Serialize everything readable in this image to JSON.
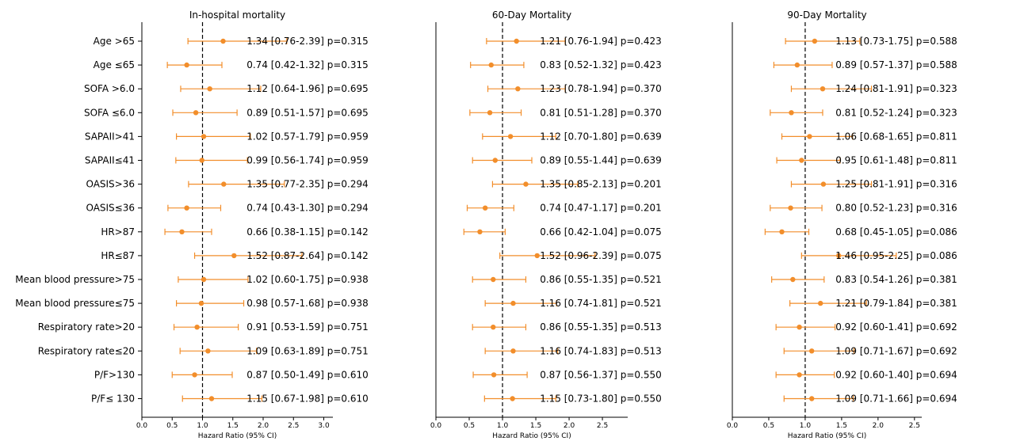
{
  "chart_data": {
    "type": "forest",
    "y_categories": [
      "Age >65",
      "Age ≤65",
      "SOFA >6.0",
      "SOFA ≤6.0",
      "SAPAII>41",
      "SAPAII≤41",
      "OASIS>36",
      "OASIS≤36",
      "HR>87",
      "HR≤87",
      "Mean blood pressure>75",
      "Mean blood pressure≤75",
      "Respiratory rate>20",
      "Respiratory rate≤20",
      "P/F>130",
      "P/F≤ 130"
    ],
    "reference_line": 1.0,
    "color": "#f28e2b",
    "panels": [
      {
        "title": "In-hospital mortality",
        "xlabel": "Hazard Ratio (95% CI)",
        "xlim": [
          0,
          3.15
        ],
        "xticks": [
          "0.0",
          "0.5",
          "1.0",
          "1.5",
          "2.0",
          "2.5",
          "3.0"
        ],
        "hr": [
          1.34,
          0.74,
          1.12,
          0.89,
          1.02,
          0.99,
          1.35,
          0.74,
          0.66,
          1.52,
          1.02,
          0.98,
          0.91,
          1.09,
          0.87,
          1.15
        ],
        "low": [
          0.76,
          0.42,
          0.64,
          0.51,
          0.57,
          0.56,
          0.77,
          0.43,
          0.38,
          0.87,
          0.6,
          0.57,
          0.53,
          0.63,
          0.5,
          0.67
        ],
        "high": [
          2.39,
          1.32,
          1.96,
          1.57,
          1.79,
          1.74,
          2.35,
          1.3,
          1.15,
          2.64,
          1.75,
          1.68,
          1.59,
          1.89,
          1.49,
          1.98
        ],
        "labels": [
          "1.34 [0.76-2.39] p=0.315",
          "0.74 [0.42-1.32] p=0.315",
          "1.12 [0.64-1.96] p=0.695",
          "0.89 [0.51-1.57] p=0.695",
          "1.02 [0.57-1.79] p=0.959",
          "0.99 [0.56-1.74] p=0.959",
          "1.35 [0.77-2.35] p=0.294",
          "0.74 [0.43-1.30] p=0.294",
          "0.66 [0.38-1.15] p=0.142",
          "1.52 [0.87-2.64] p=0.142",
          "1.02 [0.60-1.75] p=0.938",
          "0.98 [0.57-1.68] p=0.938",
          "0.91 [0.53-1.59] p=0.751",
          "1.09 [0.63-1.89] p=0.751",
          "0.87 [0.50-1.49] p=0.610",
          "1.15 [0.67-1.98] p=0.610"
        ]
      },
      {
        "title": "60-Day Mortality",
        "xlabel": "Hazard Ratio (95% CI)",
        "xlim": [
          0,
          2.88
        ],
        "xticks": [
          "0.0",
          "0.5",
          "1.0",
          "1.5",
          "2.0",
          "2.5"
        ],
        "hr": [
          1.21,
          0.83,
          1.23,
          0.81,
          1.12,
          0.89,
          1.35,
          0.74,
          0.66,
          1.52,
          0.86,
          1.16,
          0.86,
          1.16,
          0.87,
          1.15
        ],
        "low": [
          0.76,
          0.52,
          0.78,
          0.51,
          0.7,
          0.55,
          0.85,
          0.47,
          0.42,
          0.96,
          0.55,
          0.74,
          0.55,
          0.74,
          0.56,
          0.73
        ],
        "high": [
          1.94,
          1.32,
          1.94,
          1.28,
          1.8,
          1.44,
          2.13,
          1.17,
          1.04,
          2.39,
          1.35,
          1.81,
          1.35,
          1.83,
          1.37,
          1.8
        ],
        "labels": [
          "1.21 [0.76-1.94] p=0.423",
          "0.83 [0.52-1.32] p=0.423",
          "1.23 [0.78-1.94] p=0.370",
          "0.81 [0.51-1.28] p=0.370",
          "1.12 [0.70-1.80] p=0.639",
          "0.89 [0.55-1.44] p=0.639",
          "1.35 [0.85-2.13] p=0.201",
          "0.74 [0.47-1.17] p=0.201",
          "0.66 [0.42-1.04] p=0.075",
          "1.52 [0.96-2.39] p=0.075",
          "0.86 [0.55-1.35] p=0.521",
          "1.16 [0.74-1.81] p=0.521",
          "0.86 [0.55-1.35] p=0.513",
          "1.16 [0.74-1.83] p=0.513",
          "0.87 [0.56-1.37] p=0.550",
          "1.15 [0.73-1.80] p=0.550"
        ]
      },
      {
        "title": "90-Day Mortality",
        "xlabel": "Hazard Ratio (95% CI)",
        "xlim": [
          0,
          2.6
        ],
        "xticks": [
          "0.0",
          "0.5",
          "1.0",
          "1.5",
          "2.0",
          "2.5"
        ],
        "hr": [
          1.13,
          0.89,
          1.24,
          0.81,
          1.06,
          0.95,
          1.25,
          0.8,
          0.68,
          1.46,
          0.83,
          1.21,
          0.92,
          1.09,
          0.92,
          1.09
        ],
        "low": [
          0.73,
          0.57,
          0.81,
          0.52,
          0.68,
          0.61,
          0.81,
          0.52,
          0.45,
          0.95,
          0.54,
          0.79,
          0.6,
          0.71,
          0.6,
          0.71
        ],
        "high": [
          1.75,
          1.37,
          1.91,
          1.24,
          1.65,
          1.48,
          1.91,
          1.23,
          1.05,
          2.25,
          1.26,
          1.84,
          1.41,
          1.67,
          1.4,
          1.66
        ],
        "labels": [
          "1.13 [0.73-1.75] p=0.588",
          "0.89 [0.57-1.37] p=0.588",
          "1.24 [0.81-1.91] p=0.323",
          "0.81 [0.52-1.24] p=0.323",
          "1.06 [0.68-1.65] p=0.811",
          "0.95 [0.61-1.48] p=0.811",
          "1.25 [0.81-1.91] p=0.316",
          "0.80 [0.52-1.23] p=0.316",
          "0.68 [0.45-1.05] p=0.086",
          "1.46 [0.95-2.25] p=0.086",
          "0.83 [0.54-1.26] p=0.381",
          "1.21 [0.79-1.84] p=0.381",
          "0.92 [0.60-1.41] p=0.692",
          "1.09 [0.71-1.67] p=0.692",
          "0.92 [0.60-1.40] p=0.694",
          "1.09 [0.71-1.66] p=0.694"
        ]
      }
    ]
  }
}
